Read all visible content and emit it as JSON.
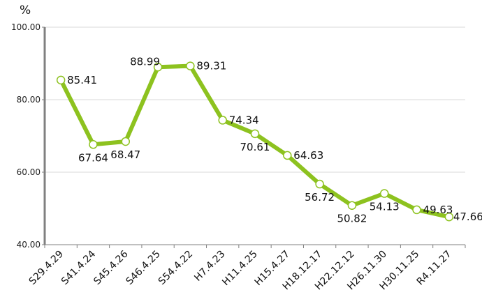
{
  "chart_data": {
    "type": "line",
    "title": "",
    "xlabel": "",
    "ylabel": "%",
    "ylim": [
      40,
      100
    ],
    "yticks": [
      "40.00",
      "60.00",
      "80.00",
      "100.00"
    ],
    "grid": true,
    "categories": [
      "S29.4.29",
      "S41.4.24",
      "S45.4.26",
      "S46.4.25",
      "S54.4.22",
      "H7.4.23",
      "H11.4.25",
      "H15.4.27",
      "H18.12.17",
      "H22.12.12",
      "H26.11.30",
      "H30.11.25",
      "R4.11.27"
    ],
    "series": [
      {
        "values": [
          85.41,
          67.64,
          68.47,
          88.99,
          89.31,
          74.34,
          70.61,
          64.63,
          56.72,
          50.82,
          54.13,
          49.63,
          47.66
        ],
        "labels": [
          "85.41",
          "67.64",
          "68.47",
          "88.99",
          "89.31",
          "74.34",
          "70.61",
          "64.63",
          "56.72",
          "50.82",
          "54.13",
          "49.63",
          "47.66"
        ]
      }
    ],
    "colors": {
      "line": "#8dc21f",
      "marker_fill": "#ffffff",
      "marker_stroke": "#8dc21f",
      "axis": "#808080",
      "grid": "#d9d9d9"
    }
  }
}
